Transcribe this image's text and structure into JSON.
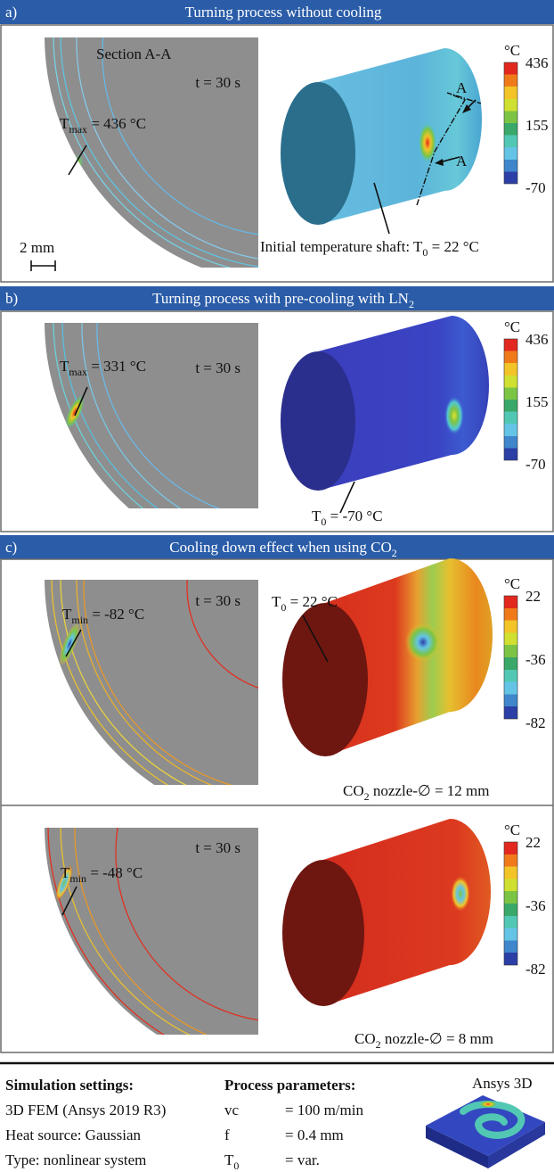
{
  "headers": [
    {
      "label": "a)",
      "title": [
        "Turning process without cooling"
      ]
    },
    {
      "label": "b)",
      "title": [
        "Turning process with pre-cooling with LN",
        "2"
      ]
    },
    {
      "label": "c)",
      "title": [
        "Cooling down effect when using CO",
        "2"
      ]
    }
  ],
  "views": [
    {
      "section_title": "Section A-A",
      "time": "t = 30 s",
      "temp": [
        "T",
        "max",
        " = 436 °C"
      ],
      "scale_bar": "2 mm",
      "shaft_label": [
        "Initial temperature shaft: T",
        "0",
        " = 22 °C"
      ],
      "section_marks": [
        "A",
        "A"
      ],
      "colorbar": {
        "unit": "°C",
        "ticks": [
          436,
          155,
          -70
        ]
      }
    },
    {
      "time": "t = 30 s",
      "temp": [
        "T",
        "max",
        " = 331 °C"
      ],
      "shaft_label": [
        "T",
        "0",
        " = -70 °C"
      ],
      "colorbar": {
        "unit": "°C",
        "ticks": [
          436,
          155,
          -70
        ]
      }
    },
    {
      "time": "t = 30 s",
      "temp": [
        "T",
        "min",
        " = -82 °C"
      ],
      "shaft_label": [
        "T",
        "0",
        " = 22 °C"
      ],
      "nozzle": [
        "CO",
        "2",
        " nozzle-∅ = 12 mm"
      ],
      "colorbar": {
        "unit": "°C",
        "ticks": [
          22,
          -36,
          -82
        ]
      }
    },
    {
      "time": "t = 30 s",
      "temp": [
        "T",
        "min",
        " = -48 °C"
      ],
      "nozzle": [
        "CO",
        "2",
        " nozzle-∅ = 8 mm"
      ],
      "colorbar": {
        "unit": "°C",
        "ticks": [
          22,
          -36,
          -82
        ]
      }
    }
  ],
  "settings": {
    "title": "Simulation settings:",
    "items": [
      "3D FEM (Ansys 2019 R3)",
      "Heat source: Gaussian",
      "Type: nonlinear system"
    ]
  },
  "parameters": {
    "title": "Process parameters:",
    "rows": [
      {
        "name": [
          "vc"
        ],
        "value": "= 100 m/min"
      },
      {
        "name": [
          "f"
        ],
        "value": "= 0.4 mm"
      },
      {
        "name": [
          "T",
          "0"
        ],
        "value": "= var."
      }
    ]
  },
  "preview_label": "Ansys 3D"
}
